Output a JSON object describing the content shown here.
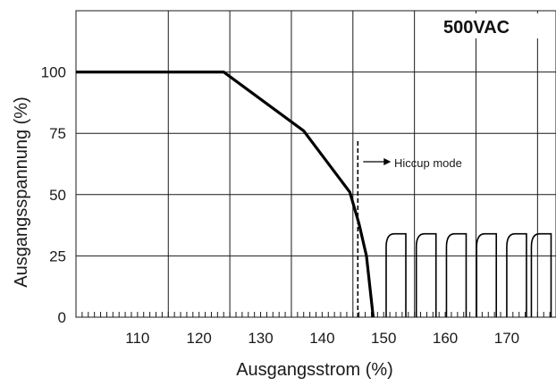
{
  "chart_data": {
    "type": "line",
    "title": "",
    "xlabel": "Ausgangsstrom (%)",
    "ylabel": "Ausgangsspannung (%)",
    "xlim": [
      100,
      178
    ],
    "ylim": [
      0,
      125
    ],
    "xticks": [
      110,
      120,
      130,
      140,
      150,
      160,
      170
    ],
    "yticks": [
      0,
      25,
      50,
      75,
      100
    ],
    "grid": true,
    "badge": "500VAC",
    "series": [
      {
        "points": [
          [
            100,
            100
          ],
          [
            124,
            100
          ],
          [
            137,
            76
          ],
          [
            144.5,
            51
          ],
          [
            146,
            38
          ],
          [
            147.2,
            25
          ],
          [
            148.3,
            0
          ]
        ]
      }
    ],
    "hiccup": {
      "marker_x": 145.8,
      "label": "Hiccup mode",
      "peak": 34,
      "pulses": [
        [
          150.4,
          153.6
        ],
        [
          155.3,
          158.5
        ],
        [
          160.2,
          163.4
        ],
        [
          165.1,
          168.3
        ],
        [
          170.0,
          173.2
        ],
        [
          174.0,
          177.2
        ]
      ]
    },
    "colors": {
      "line": "#000000",
      "grid": "#1a1a1a",
      "badge_bg": "#ffffff"
    }
  }
}
